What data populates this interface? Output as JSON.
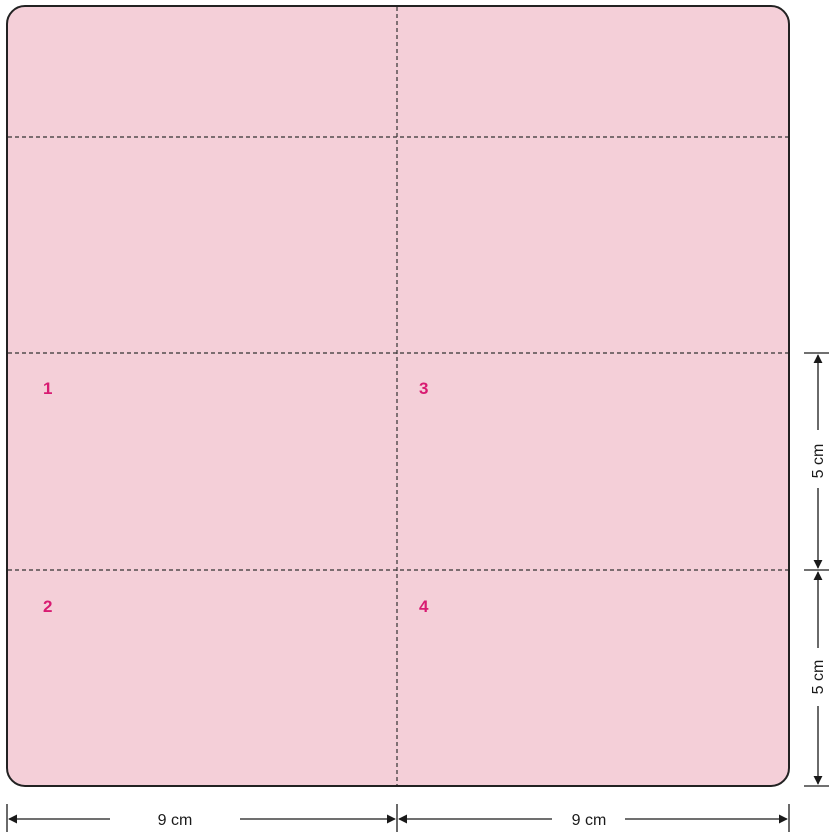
{
  "colors": {
    "sheet_fill": "#f4cfd8",
    "sheet_stroke": "#222222",
    "fold_line": "#333333",
    "number": "#d81b72",
    "dimension": "#1a1a1a"
  },
  "panels": {
    "n1": "1",
    "n2": "2",
    "n3": "3",
    "n4": "4"
  },
  "dimensions": {
    "width_left": "9 cm",
    "width_right": "9 cm",
    "height_upper": "5 cm",
    "height_lower": "5 cm"
  }
}
